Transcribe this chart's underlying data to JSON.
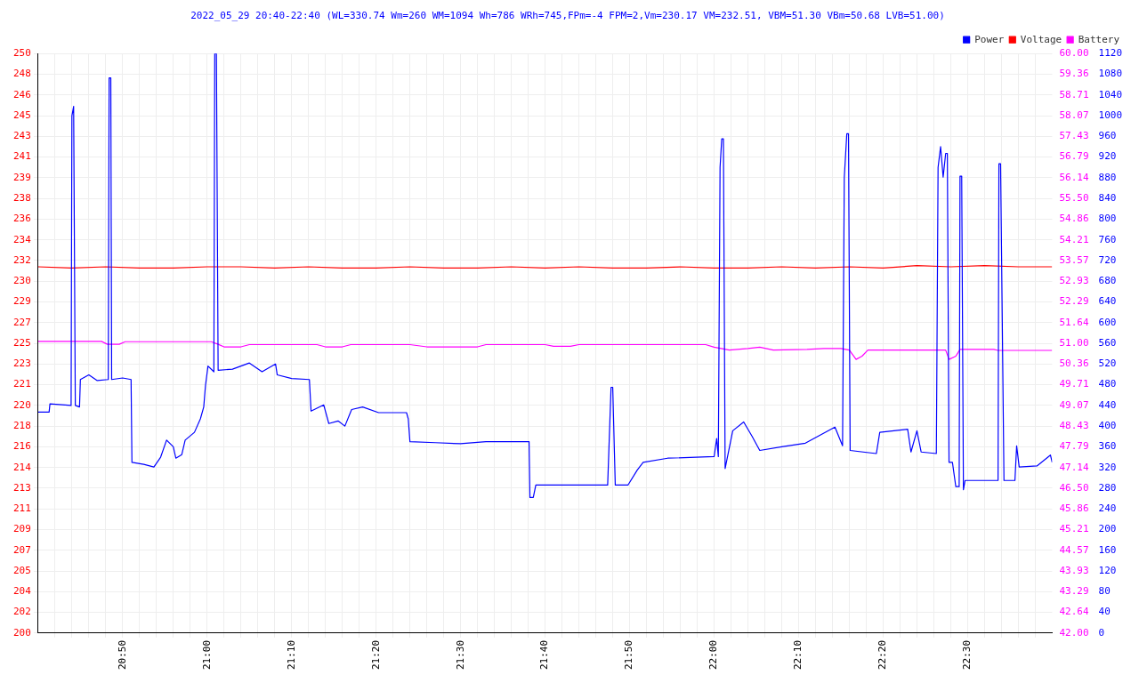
{
  "chart_data": {
    "type": "line",
    "title": "2022_05_29 20:40-22:40 (WL=330.74 Wm=260 WM=1094 Wh=786 WRh=745,FPm=-4 FPM=2,Vm=230.17 VM=232.51, VBM=51.30 VBm=50.68 LVB=51.00)",
    "legend": "top right",
    "grid": true,
    "marker": "none",
    "line_style": "solid",
    "xlim": [
      20.6667,
      22.6667
    ],
    "xticks": [
      {
        "value": 20.7,
        "label": null
      },
      {
        "value": 20.7333,
        "label": null
      },
      {
        "value": 20.7667,
        "label": null
      },
      {
        "value": 20.8,
        "label": null
      },
      {
        "value": 20.8333,
        "label": "20:50"
      },
      {
        "value": 20.8667,
        "label": null
      },
      {
        "value": 20.9,
        "label": null
      },
      {
        "value": 20.9333,
        "label": null
      },
      {
        "value": 20.9667,
        "label": null
      },
      {
        "value": 21,
        "label": "21:00"
      },
      {
        "value": 21.0333,
        "label": null
      },
      {
        "value": 21.0667,
        "label": null
      },
      {
        "value": 21.1,
        "label": null
      },
      {
        "value": 21.1333,
        "label": null
      },
      {
        "value": 21.1667,
        "label": "21:10"
      },
      {
        "value": 21.2,
        "label": null
      },
      {
        "value": 21.2333,
        "label": null
      },
      {
        "value": 21.2667,
        "label": null
      },
      {
        "value": 21.3,
        "label": null
      },
      {
        "value": 21.3333,
        "label": "21:20"
      },
      {
        "value": 21.3667,
        "label": null
      },
      {
        "value": 21.4,
        "label": null
      },
      {
        "value": 21.4333,
        "label": null
      },
      {
        "value": 21.4667,
        "label": null
      },
      {
        "value": 21.5,
        "label": "21:30"
      },
      {
        "value": 21.5333,
        "label": null
      },
      {
        "value": 21.5667,
        "label": null
      },
      {
        "value": 21.6,
        "label": null
      },
      {
        "value": 21.6333,
        "label": null
      },
      {
        "value": 21.6667,
        "label": "21:40"
      },
      {
        "value": 21.7,
        "label": null
      },
      {
        "value": 21.7333,
        "label": null
      },
      {
        "value": 21.7667,
        "label": null
      },
      {
        "value": 21.8,
        "label": null
      },
      {
        "value": 21.8333,
        "label": "21:50"
      },
      {
        "value": 21.8667,
        "label": null
      },
      {
        "value": 21.9,
        "label": null
      },
      {
        "value": 21.9333,
        "label": null
      },
      {
        "value": 21.9667,
        "label": null
      },
      {
        "value": 22,
        "label": "22:00"
      },
      {
        "value": 22.0333,
        "label": null
      },
      {
        "value": 22.0667,
        "label": null
      },
      {
        "value": 22.1,
        "label": null
      },
      {
        "value": 22.1333,
        "label": null
      },
      {
        "value": 22.1667,
        "label": "22:10"
      },
      {
        "value": 22.2,
        "label": null
      },
      {
        "value": 22.2333,
        "label": null
      },
      {
        "value": 22.2667,
        "label": null
      },
      {
        "value": 22.3,
        "label": null
      },
      {
        "value": 22.3333,
        "label": "22:20"
      },
      {
        "value": 22.3667,
        "label": null
      },
      {
        "value": 22.4,
        "label": null
      },
      {
        "value": 22.4333,
        "label": null
      },
      {
        "value": 22.4667,
        "label": null
      },
      {
        "value": 22.5,
        "label": "22:30"
      },
      {
        "value": 22.5333,
        "label": null
      },
      {
        "value": 22.5667,
        "label": null
      },
      {
        "value": 22.6,
        "label": null
      },
      {
        "value": 22.6333,
        "label": null
      }
    ],
    "ylim": [
      200,
      250
    ],
    "yticks": [
      200,
      {
        "value": 201.7857,
        "label": "202"
      },
      {
        "value": 203.5714,
        "label": "204"
      },
      {
        "value": 205.3571,
        "label": "205"
      },
      {
        "value": 207.1429,
        "label": "207"
      },
      {
        "value": 208.9286,
        "label": "209"
      },
      {
        "value": 210.7143,
        "label": "211"
      },
      {
        "value": 212.5,
        "label": "213"
      },
      {
        "value": 214.2857,
        "label": "214"
      },
      {
        "value": 216.0714,
        "label": "216"
      },
      {
        "value": 217.8571,
        "label": "218"
      },
      {
        "value": 219.6429,
        "label": "220"
      },
      {
        "value": 221.4286,
        "label": "221"
      },
      {
        "value": 223.2143,
        "label": "223"
      },
      225,
      {
        "value": 226.7857,
        "label": "227"
      },
      {
        "value": 228.5714,
        "label": "229"
      },
      {
        "value": 230.3571,
        "label": "230"
      },
      {
        "value": 232.1429,
        "label": "232"
      },
      {
        "value": 233.9286,
        "label": "234"
      },
      {
        "value": 235.7143,
        "label": "236"
      },
      {
        "value": 237.5,
        "label": "238"
      },
      {
        "value": 239.2857,
        "label": "239"
      },
      {
        "value": 241.0714,
        "label": "241"
      },
      {
        "value": 242.8571,
        "label": "243"
      },
      {
        "value": 244.6429,
        "label": "245"
      },
      {
        "value": 246.4286,
        "label": "246"
      },
      {
        "value": 248.2143,
        "label": "248"
      },
      250
    ],
    "y2lim": [
      42,
      60
    ],
    "y2ticks": [
      {
        "value": 42,
        "label": "42.00"
      },
      {
        "value": 42.6429,
        "label": "42.64"
      },
      {
        "value": 43.2857,
        "label": "43.29"
      },
      {
        "value": 43.9286,
        "label": "43.93"
      },
      {
        "value": 44.5714,
        "label": "44.57"
      },
      {
        "value": 45.2143,
        "label": "45.21"
      },
      {
        "value": 45.8571,
        "label": "45.86"
      },
      {
        "value": 46.5,
        "label": "46.50"
      },
      {
        "value": 47.1429,
        "label": "47.14"
      },
      {
        "value": 47.7857,
        "label": "47.79"
      },
      {
        "value": 48.4286,
        "label": "48.43"
      },
      {
        "value": 49.0714,
        "label": "49.07"
      },
      {
        "value": 49.7143,
        "label": "49.71"
      },
      {
        "value": 50.3571,
        "label": "50.36"
      },
      {
        "value": 51,
        "label": "51.00"
      },
      {
        "value": 51.6429,
        "label": "51.64"
      },
      {
        "value": 52.2857,
        "label": "52.29"
      },
      {
        "value": 52.9286,
        "label": "52.93"
      },
      {
        "value": 53.5714,
        "label": "53.57"
      },
      {
        "value": 54.2143,
        "label": "54.21"
      },
      {
        "value": 54.8571,
        "label": "54.86"
      },
      {
        "value": 55.5,
        "label": "55.50"
      },
      {
        "value": 56.1429,
        "label": "56.14"
      },
      {
        "value": 56.7857,
        "label": "56.79"
      },
      {
        "value": 57.4286,
        "label": "57.43"
      },
      {
        "value": 58.0714,
        "label": "58.07"
      },
      {
        "value": 58.7143,
        "label": "58.71"
      },
      {
        "value": 59.3571,
        "label": "59.36"
      },
      {
        "value": 60,
        "label": "60.00"
      }
    ],
    "y3lim": [
      0,
      1120
    ],
    "y3ticks": [
      0,
      40,
      80,
      120,
      160,
      200,
      240,
      280,
      320,
      360,
      400,
      440,
      480,
      520,
      560,
      600,
      640,
      680,
      720,
      760,
      800,
      840,
      880,
      920,
      960,
      1000,
      1040,
      1080,
      1120
    ],
    "series": [
      {
        "name": "Power",
        "color": "#0000ff",
        "axis": "y3",
        "x": [
          20.6667,
          20.6883,
          20.69,
          20.7317,
          20.7333,
          20.7367,
          20.74,
          20.7483,
          20.75,
          20.7667,
          20.7833,
          20.805,
          20.8067,
          20.81,
          20.8117,
          20.8333,
          20.85,
          20.8517,
          20.875,
          20.895,
          20.9083,
          20.92,
          20.9333,
          20.9383,
          20.95,
          20.9567,
          20.975,
          20.9867,
          20.9933,
          20.9967,
          21.0017,
          21.0133,
          21.015,
          21.0183,
          21.0217,
          21.05,
          21.0833,
          21.1083,
          21.135,
          21.1383,
          21.1667,
          21.2017,
          21.205,
          21.23,
          21.24,
          21.2583,
          21.2717,
          21.285,
          21.3067,
          21.3383,
          21.3933,
          21.3967,
          21.4,
          21.45,
          21.5,
          21.55,
          21.635,
          21.6367,
          21.6433,
          21.6483,
          21.7167,
          21.79,
          21.7967,
          21.8,
          21.805,
          21.83,
          21.8483,
          21.86,
          21.9083,
          22.0,
          22.005,
          22.0083,
          22.0117,
          22.015,
          22.0183,
          22.0217,
          22.0367,
          22.0583,
          22.075,
          22.09,
          22.1333,
          22.18,
          22.2383,
          22.2533,
          22.2567,
          22.2617,
          22.265,
          22.2683,
          22.32,
          22.3267,
          22.3817,
          22.3883,
          22.4,
          22.4083,
          22.4383,
          22.4417,
          22.4467,
          22.4517,
          22.4567,
          22.46,
          22.4633,
          22.47,
          22.4767,
          22.4833,
          22.485,
          22.4883,
          22.4917,
          22.495,
          22.56,
          22.5617,
          22.565,
          22.5717,
          22.5933,
          22.5967,
          22.6017,
          22.6367,
          22.6633,
          22.6667
        ],
        "values": [
          427,
          427,
          443,
          440,
          1000,
          1018,
          440,
          437,
          490,
          499,
          488,
          490,
          1073,
          1073,
          490,
          493,
          490,
          330,
          326,
          321,
          340,
          373,
          360,
          338,
          345,
          373,
          388,
          414,
          437,
          478,
          516,
          505,
          1120,
          1120,
          508,
          510,
          522,
          505,
          520,
          499,
          492,
          490,
          429,
          441,
          405,
          410,
          400,
          432,
          437,
          426,
          426,
          414,
          370,
          368,
          366,
          370,
          370,
          262,
          262,
          286,
          286,
          286,
          475,
          475,
          286,
          286,
          315,
          330,
          338,
          341,
          376,
          341,
          900,
          955,
          955,
          318,
          391,
          408,
          380,
          353,
          360,
          367,
          398,
          362,
          880,
          965,
          965,
          353,
          347,
          388,
          394,
          350,
          391,
          350,
          347,
          900,
          940,
          881,
          927,
          927,
          330,
          330,
          283,
          283,
          883,
          883,
          277,
          295,
          295,
          907,
          907,
          295,
          295,
          362,
          321,
          323,
          344,
          330
        ]
      },
      {
        "name": "Voltage",
        "color": "#ff0000",
        "x": [
          20.6667,
          20.7333,
          20.8,
          20.8667,
          20.9333,
          21,
          21.0667,
          21.1333,
          21.2,
          21.2667,
          21.3333,
          21.4,
          21.4667,
          21.5333,
          21.6,
          21.6667,
          21.7333,
          21.8,
          21.8667,
          21.9333,
          22,
          22.0667,
          22.1333,
          22.2,
          22.2667,
          22.3333,
          22.4,
          22.4667,
          22.5333,
          22.6,
          22.6667
        ],
        "values": [
          231.6,
          231.5,
          231.6,
          231.5,
          231.5,
          231.6,
          231.6,
          231.5,
          231.6,
          231.5,
          231.5,
          231.6,
          231.5,
          231.5,
          231.6,
          231.5,
          231.6,
          231.5,
          231.5,
          231.6,
          231.5,
          231.5,
          231.6,
          231.5,
          231.6,
          231.5,
          231.7,
          231.6,
          231.7,
          231.6,
          231.6
        ]
      },
      {
        "name": "Battery",
        "color": "#ff00ff",
        "axis": "y2",
        "x": [
          20.6667,
          20.7917,
          20.8033,
          20.8267,
          20.8383,
          21.0083,
          21.0217,
          21.0333,
          21.0667,
          21.0833,
          21.2167,
          21.2333,
          21.2667,
          21.2833,
          21.4,
          21.4333,
          21.5333,
          21.55,
          21.6667,
          21.6833,
          21.7167,
          21.7333,
          21.9833,
          22.0,
          22.03,
          22.0667,
          22.09,
          22.1167,
          22.1833,
          22.2167,
          22.25,
          22.2667,
          22.28,
          22.2917,
          22.3033,
          22.4567,
          22.4633,
          22.4767,
          22.485,
          22.5517,
          22.56,
          22.6667
        ],
        "values": [
          51.06,
          51.06,
          50.97,
          50.97,
          51.05,
          51.05,
          50.97,
          50.89,
          50.89,
          50.96,
          50.96,
          50.89,
          50.89,
          50.96,
          50.96,
          50.89,
          50.89,
          50.96,
          50.96,
          50.91,
          50.91,
          50.96,
          50.96,
          50.88,
          50.79,
          50.84,
          50.88,
          50.79,
          50.81,
          50.84,
          50.84,
          50.79,
          50.5,
          50.6,
          50.79,
          50.79,
          50.5,
          50.6,
          50.81,
          50.81,
          50.78,
          50.78
        ]
      }
    ]
  }
}
